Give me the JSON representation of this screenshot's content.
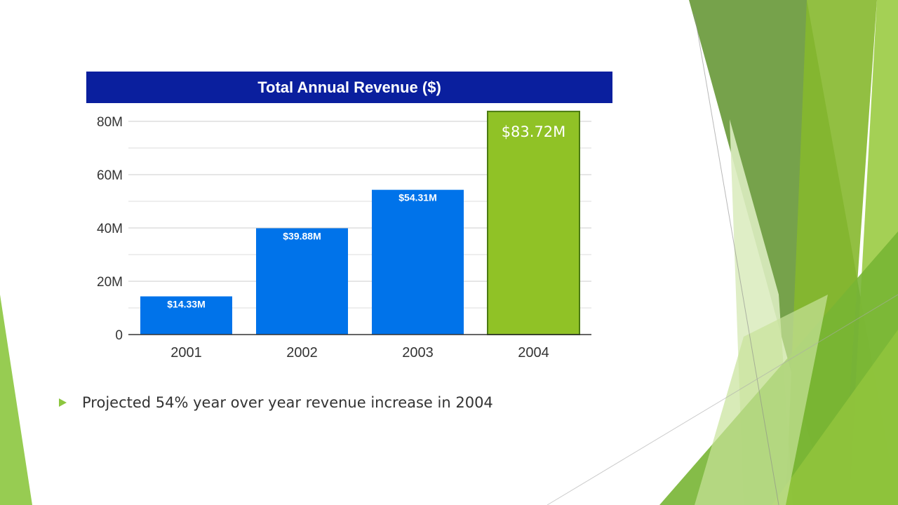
{
  "slide": {
    "bullet_text": "Projected 54% year over year revenue increase in 2004"
  },
  "colors": {
    "title_bg": "#0a1f9e",
    "bar": "#0073ea",
    "highlight_bar": "#90c226",
    "highlight_border": "#4a7a12",
    "accent": "#8cc63f"
  },
  "chart_data": {
    "type": "bar",
    "title": "Total Annual Revenue ($)",
    "categories": [
      "2001",
      "2002",
      "2003",
      "2004"
    ],
    "values": [
      14.33,
      39.88,
      54.31,
      83.72
    ],
    "value_unit": "M",
    "data_labels": [
      "$14.33M",
      "$39.88M",
      "$54.31M",
      "$83.72M"
    ],
    "highlight_index": 3,
    "ylim": [
      0,
      80
    ],
    "yticks": [
      0,
      20,
      40,
      60,
      80
    ],
    "ytick_labels": [
      "0",
      "20M",
      "40M",
      "60M",
      "80M"
    ],
    "minor_gridlines": [
      10,
      30,
      50,
      70
    ],
    "grid": true,
    "legend": "none",
    "xlabel": "",
    "ylabel": ""
  }
}
